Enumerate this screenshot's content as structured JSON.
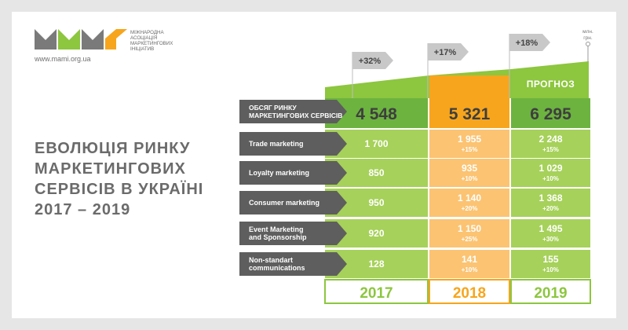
{
  "logo": {
    "org_lines": [
      "Міжнародна",
      "асоціація",
      "маркетингових",
      "ініціатив"
    ],
    "url": "www.mami.org.ua",
    "colors": [
      "#7a7a7a",
      "#8dc63f",
      "#7a7a7a",
      "#f7a51c"
    ]
  },
  "title_lines": [
    "ЕВОЛЮЦІЯ РИНКУ",
    "МАРКЕТИНГОВИХ",
    "СЕРВІСІВ В УКРАЇНІ",
    "2017 – 2019"
  ],
  "forecast_label": "ПРОГНОЗ",
  "unit_label": [
    "млн.",
    "грн."
  ],
  "colors": {
    "green": "#8dc63f",
    "dark_green": "#6cb33f",
    "light_green": "#a6d15a",
    "orange": "#f7a51c",
    "light_orange": "#fbc372",
    "label_gray": "#5e5e5e",
    "tag_gray": "#c8c8c8"
  },
  "chart_data": {
    "type": "table",
    "years": [
      "2017",
      "2018",
      "2019"
    ],
    "year_colors": [
      "#8dc63f",
      "#f7a51c",
      "#8dc63f"
    ],
    "growth_tags": [
      "+32%",
      "+17%",
      "+18%"
    ],
    "total": {
      "label_lines": [
        "ОБСЯГ РИНКУ",
        "МАРКЕТИНГОВИХ СЕРВІСІВ"
      ],
      "values": [
        "4 548",
        "5 321",
        "6 295"
      ]
    },
    "rows": [
      {
        "label": [
          "Trade marketing"
        ],
        "values": [
          "1 700",
          "1 955",
          "2 248"
        ],
        "changes": [
          "",
          "+15%",
          "+15%"
        ]
      },
      {
        "label": [
          "Loyalty marketing"
        ],
        "values": [
          "850",
          "935",
          "1 029"
        ],
        "changes": [
          "",
          "+10%",
          "+10%"
        ]
      },
      {
        "label": [
          "Consumer marketing"
        ],
        "values": [
          "950",
          "1 140",
          "1 368"
        ],
        "changes": [
          "",
          "+20%",
          "+20%"
        ]
      },
      {
        "label": [
          "Event Marketing",
          "and Sponsorship"
        ],
        "values": [
          "920",
          "1 150",
          "1 495"
        ],
        "changes": [
          "",
          "+25%",
          "+30%"
        ]
      },
      {
        "label": [
          "Non-standart",
          "communications"
        ],
        "values": [
          "128",
          "141",
          "155"
        ],
        "changes": [
          "",
          "+10%",
          "+10%"
        ]
      }
    ]
  }
}
